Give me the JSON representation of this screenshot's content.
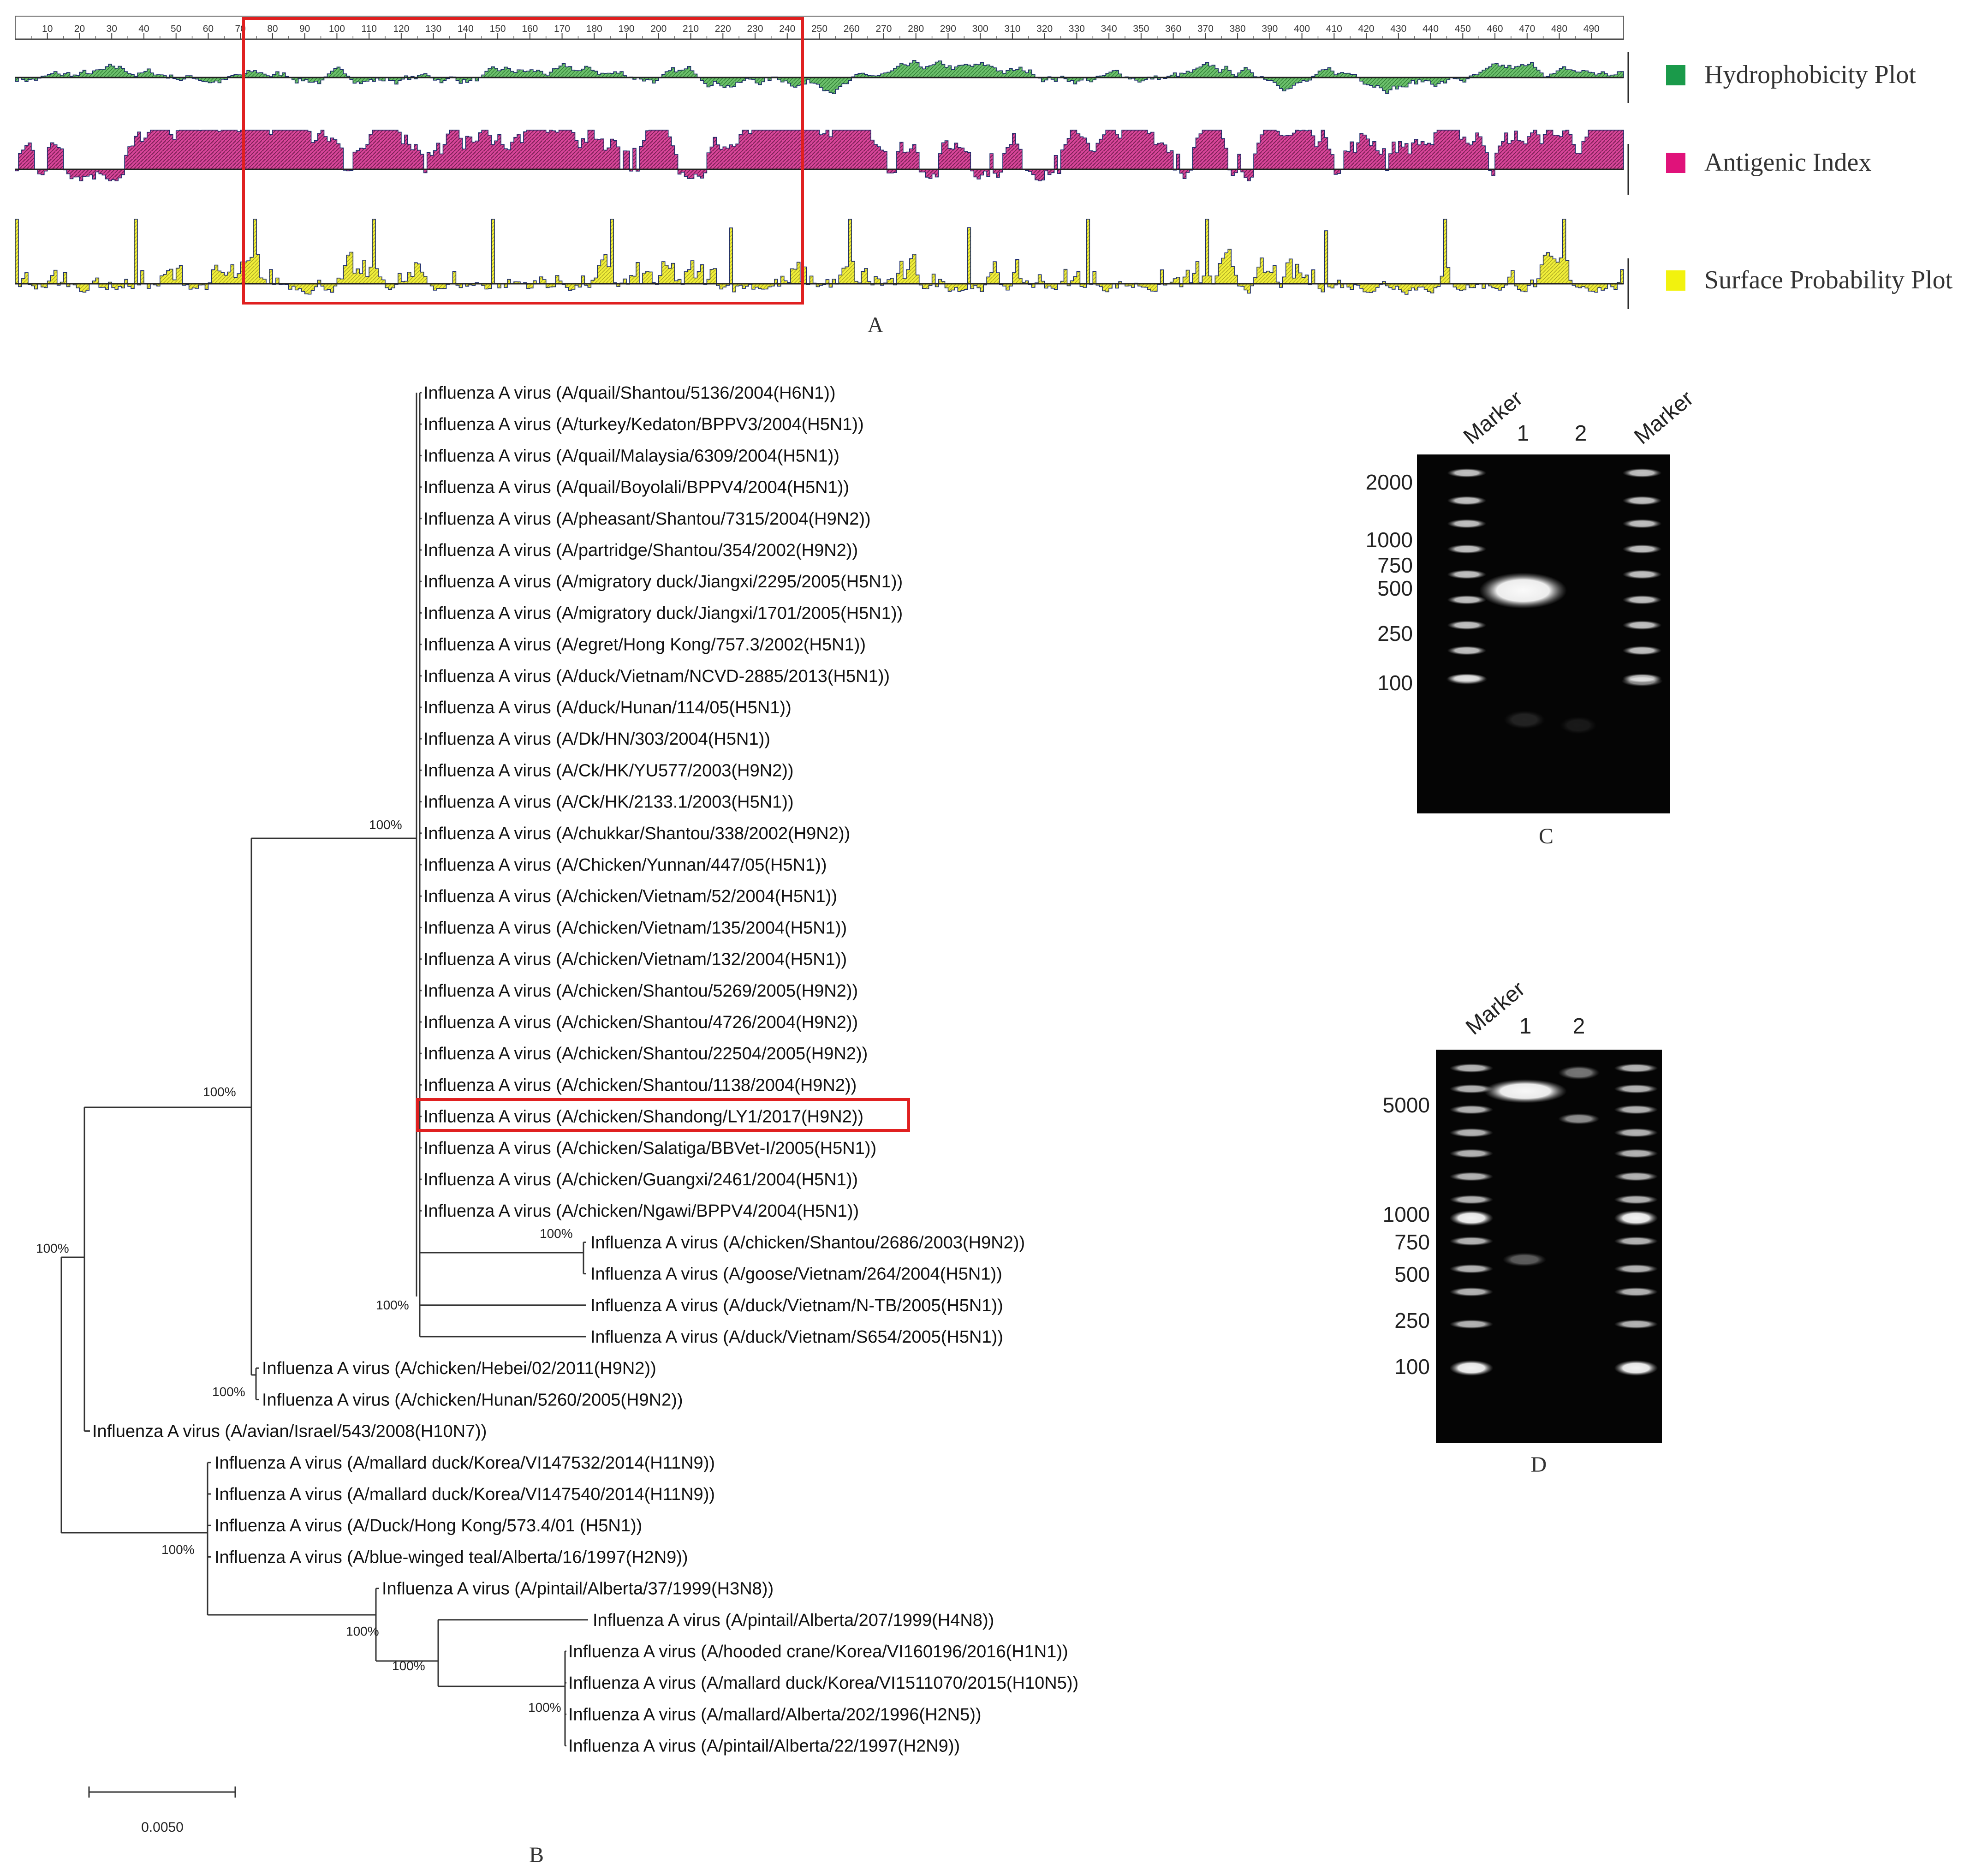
{
  "panel_a": {
    "letter": "A",
    "ruler_ticks": [
      "10",
      "20",
      "30",
      "40",
      "50",
      "60",
      "70",
      "80",
      "90",
      "100",
      "110",
      "120",
      "130",
      "140",
      "150",
      "160",
      "170",
      "180",
      "190",
      "200",
      "210",
      "220",
      "230",
      "240",
      "250",
      "260",
      "270",
      "280",
      "290",
      "300",
      "310",
      "320",
      "330",
      "340",
      "350",
      "360",
      "370",
      "380",
      "390",
      "400",
      "410",
      "420",
      "430",
      "440",
      "450",
      "460",
      "470",
      "480",
      "490"
    ],
    "legend": [
      {
        "label": "Hydrophobicity Plot",
        "color": "#1a9a4a"
      },
      {
        "label": "Antigenic Index",
        "color": "#e0127a"
      },
      {
        "label": "Surface Probability Plot",
        "color": "#f2f20e"
      }
    ],
    "highlight_range": [
      75,
      243
    ]
  },
  "panel_b": {
    "letter": "B",
    "scale_label": "0.0050",
    "highlighted_taxon": "Influenza A virus (A/chicken/Shandong/LY1/2017(H9N2))",
    "taxa": [
      "Influenza A virus (A/quail/Shantou/5136/2004(H6N1))",
      "Influenza A virus (A/turkey/Kedaton/BPPV3/2004(H5N1))",
      "Influenza A virus (A/quail/Malaysia/6309/2004(H5N1))",
      "Influenza A virus (A/quail/Boyolali/BPPV4/2004(H5N1))",
      "Influenza A virus (A/pheasant/Shantou/7315/2004(H9N2))",
      "Influenza A virus (A/partridge/Shantou/354/2002(H9N2))",
      "Influenza A virus (A/migratory duck/Jiangxi/2295/2005(H5N1))",
      "Influenza A virus (A/migratory duck/Jiangxi/1701/2005(H5N1))",
      "Influenza A virus (A/egret/Hong Kong/757.3/2002(H5N1))",
      "Influenza A virus (A/duck/Vietnam/NCVD-2885/2013(H5N1))",
      "Influenza A virus (A/duck/Hunan/114/05(H5N1))",
      "Influenza A virus (A/Dk/HN/303/2004(H5N1))",
      "Influenza A virus (A/Ck/HK/YU577/2003(H9N2))",
      "Influenza A virus (A/Ck/HK/2133.1/2003(H5N1))",
      "Influenza A virus (A/chukkar/Shantou/338/2002(H9N2))",
      "Influenza A virus (A/Chicken/Yunnan/447/05(H5N1))",
      "Influenza A virus (A/chicken/Vietnam/52/2004(H5N1))",
      "Influenza A virus (A/chicken/Vietnam/135/2004(H5N1))",
      "Influenza A virus (A/chicken/Vietnam/132/2004(H5N1))",
      "Influenza A virus (A/chicken/Shantou/5269/2005(H9N2))",
      "Influenza A virus (A/chicken/Shantou/4726/2004(H9N2))",
      "Influenza A virus (A/chicken/Shantou/22504/2005(H9N2))",
      "Influenza A virus (A/chicken/Shantou/1138/2004(H9N2))",
      "Influenza A virus (A/chicken/Shandong/LY1/2017(H9N2))",
      "Influenza A virus (A/chicken/Salatiga/BBVet-I/2005(H5N1))",
      "Influenza A virus (A/chicken/Guangxi/2461/2004(H5N1))",
      "Influenza A virus (A/chicken/Ngawi/BPPV4/2004(H5N1))",
      "Influenza A virus (A/chicken/Shantou/2686/2003(H9N2))",
      "Influenza A virus (A/goose/Vietnam/264/2004(H5N1))",
      "Influenza A virus (A/duck/Vietnam/N-TB/2005(H5N1))",
      "Influenza A virus (A/duck/Vietnam/S654/2005(H5N1))",
      "Influenza A virus (A/chicken/Hebei/02/2011(H9N2))",
      "Influenza A virus (A/chicken/Hunan/5260/2005(H9N2))",
      "Influenza A virus (A/avian/Israel/543/2008(H10N7))",
      "Influenza A virus (A/mallard duck/Korea/VI147532/2014(H11N9))",
      "Influenza A virus (A/mallard duck/Korea/VI147540/2014(H11N9))",
      "Influenza A virus (A/Duck/Hong Kong/573.4/01 (H5N1))",
      "Influenza A virus (A/blue-winged teal/Alberta/16/1997(H2N9))",
      "Influenza A virus (A/pintail/Alberta/37/1999(H3N8))",
      "Influenza A virus (A/pintail/Alberta/207/1999(H4N8))",
      "Influenza A virus (A/hooded crane/Korea/VI160196/2016(H1N1))",
      "Influenza A virus (A/mallard duck/Korea/VI1511070/2015(H10N5))",
      "Influenza A virus (A/mallard/Alberta/202/1996(H2N5))",
      "Influenza A virus (A/pintail/Alberta/22/1997(H2N9))"
    ],
    "bootstrap": [
      "100%",
      "100%",
      "100%",
      "100%",
      "100%",
      "100%",
      "100%",
      "100%",
      "100%",
      "100%"
    ]
  },
  "panel_c": {
    "letter": "C",
    "lanes": [
      "Marker",
      "1",
      "2",
      "Marker"
    ],
    "ladder": [
      "2000",
      "1000",
      "750",
      "500",
      "250",
      "100"
    ]
  },
  "panel_d": {
    "letter": "D",
    "lanes": [
      "Marker",
      "1",
      "2"
    ],
    "ladder": [
      "5000",
      "1000",
      "750",
      "500",
      "250",
      "100"
    ]
  }
}
